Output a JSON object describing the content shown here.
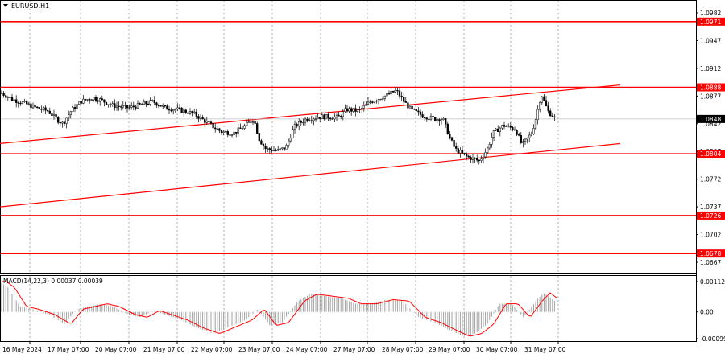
{
  "window": {
    "title": "EURUSD,H1",
    "menu_arrow_icon": "triangle-down-icon"
  },
  "macd": {
    "label": "MACD(14,22,3) 0.00037 0.00039",
    "axis_labels": [
      "0.00112",
      "0.00",
      "-0.00099"
    ]
  },
  "price_axis": {
    "labels": [
      {
        "value": 1.0982,
        "text": "1.0982"
      },
      {
        "value": 1.0947,
        "text": "1.0947"
      },
      {
        "value": 1.0912,
        "text": "1.0912"
      },
      {
        "value": 1.0877,
        "text": "1.0877"
      },
      {
        "value": 1.0842,
        "text": "1.0842"
      },
      {
        "value": 1.0807,
        "text": "1.0807"
      },
      {
        "value": 1.0772,
        "text": "1.0772"
      },
      {
        "value": 1.0737,
        "text": "1.0737"
      },
      {
        "value": 1.0702,
        "text": "1.0702"
      },
      {
        "value": 1.0667,
        "text": "1.0667"
      }
    ],
    "level_badges": [
      {
        "value": 1.0971,
        "text": "1.0971"
      },
      {
        "value": 1.0888,
        "text": "1.0888"
      },
      {
        "value": 1.0804,
        "text": "1.0804"
      },
      {
        "value": 1.0726,
        "text": "1.0726"
      },
      {
        "value": 1.0678,
        "text": "1.0678"
      }
    ],
    "current_price": {
      "value": 1.0848,
      "text": "1.0848"
    },
    "range": [
      1.0657,
      1.0995
    ]
  },
  "time_axis": {
    "labels": [
      "16 May 2024",
      "17 May 07:00",
      "20 May 07:00",
      "21 May 07:00",
      "22 May 07:00",
      "23 May 07:00",
      "24 May 07:00",
      "27 May 07:00",
      "28 May 07:00",
      "29 May 07:00",
      "30 May 07:00",
      "31 May 07:00"
    ]
  },
  "colors": {
    "level_line": "#ff0000",
    "candle": "#000000",
    "grid": "#9a9a9a",
    "macd_hist": "#a0a0a0",
    "macd_signal": "#ff0000",
    "badge_text": "#ffffff",
    "current_badge": "#000000"
  },
  "chart_data": {
    "type": "candlestick",
    "symbol": "EURUSD",
    "timeframe": "H1",
    "horizontal_levels": [
      1.0971,
      1.0888,
      1.0804,
      1.0726,
      1.0678
    ],
    "channel": {
      "upper": [
        [
          0,
          1.0817
        ],
        [
          770,
          1.0891
        ]
      ],
      "lower": [
        [
          0,
          1.0737
        ],
        [
          770,
          1.0817
        ]
      ]
    },
    "close_path": [
      [
        0,
        1.0882
      ],
      [
        15,
        1.0873
      ],
      [
        30,
        1.0868
      ],
      [
        45,
        1.0862
      ],
      [
        60,
        1.0858
      ],
      [
        70,
        1.0848
      ],
      [
        78,
        1.0842
      ],
      [
        88,
        1.0858
      ],
      [
        100,
        1.087
      ],
      [
        115,
        1.0875
      ],
      [
        125,
        1.0872
      ],
      [
        140,
        1.0865
      ],
      [
        160,
        1.0862
      ],
      [
        175,
        1.0866
      ],
      [
        190,
        1.087
      ],
      [
        205,
        1.0862
      ],
      [
        220,
        1.086
      ],
      [
        240,
        1.0855
      ],
      [
        255,
        1.0845
      ],
      [
        265,
        1.0838
      ],
      [
        275,
        1.0832
      ],
      [
        290,
        1.083
      ],
      [
        305,
        1.084
      ],
      [
        315,
        1.0848
      ],
      [
        322,
        1.0822
      ],
      [
        330,
        1.081
      ],
      [
        345,
        1.0808
      ],
      [
        355,
        1.0812
      ],
      [
        365,
        1.0838
      ],
      [
        380,
        1.0848
      ],
      [
        400,
        1.0851
      ],
      [
        420,
        1.085
      ],
      [
        430,
        1.086
      ],
      [
        445,
        1.0858
      ],
      [
        460,
        1.087
      ],
      [
        480,
        1.0878
      ],
      [
        492,
        1.0884
      ],
      [
        500,
        1.0872
      ],
      [
        510,
        1.086
      ],
      [
        525,
        1.0852
      ],
      [
        540,
        1.0848
      ],
      [
        550,
        1.0848
      ],
      [
        558,
        1.0825
      ],
      [
        565,
        1.081
      ],
      [
        580,
        1.08
      ],
      [
        595,
        1.0795
      ],
      [
        605,
        1.081
      ],
      [
        612,
        1.083
      ],
      [
        625,
        1.084
      ],
      [
        640,
        1.0835
      ],
      [
        648,
        1.0815
      ],
      [
        660,
        1.083
      ],
      [
        665,
        1.0848
      ],
      [
        672,
        1.088
      ],
      [
        680,
        1.0858
      ],
      [
        690,
        1.0848
      ]
    ],
    "macd_histogram": [
      [
        0,
        0.00112
      ],
      [
        10,
        0.0009
      ],
      [
        25,
        0.0002
      ],
      [
        40,
        0.0001
      ],
      [
        60,
        -0.0001
      ],
      [
        80,
        -0.00045
      ],
      [
        95,
        0.0001
      ],
      [
        110,
        0.0002
      ],
      [
        125,
        0.0003
      ],
      [
        140,
        0.0002
      ],
      [
        160,
        -0.0001
      ],
      [
        175,
        -0.0002
      ],
      [
        190,
        5e-05
      ],
      [
        205,
        -0.0001
      ],
      [
        225,
        -0.0003
      ],
      [
        245,
        -0.0006
      ],
      [
        265,
        -0.0008
      ],
      [
        285,
        -0.00055
      ],
      [
        305,
        -0.0003
      ],
      [
        320,
        0.0001
      ],
      [
        335,
        -0.0005
      ],
      [
        350,
        -0.0004
      ],
      [
        370,
        0.0004
      ],
      [
        385,
        0.00065
      ],
      [
        400,
        0.0006
      ],
      [
        425,
        0.0005
      ],
      [
        440,
        0.0003
      ],
      [
        460,
        0.0003
      ],
      [
        480,
        0.00045
      ],
      [
        500,
        0.0004
      ],
      [
        520,
        -0.0002
      ],
      [
        540,
        -0.0004
      ],
      [
        560,
        -0.0007
      ],
      [
        575,
        -0.0009
      ],
      [
        590,
        -0.0008
      ],
      [
        605,
        -0.00045
      ],
      [
        620,
        0.0003
      ],
      [
        635,
        0.0003
      ],
      [
        650,
        -0.0002
      ],
      [
        665,
        0.0004
      ],
      [
        675,
        0.0007
      ],
      [
        690,
        0.00037
      ]
    ]
  }
}
